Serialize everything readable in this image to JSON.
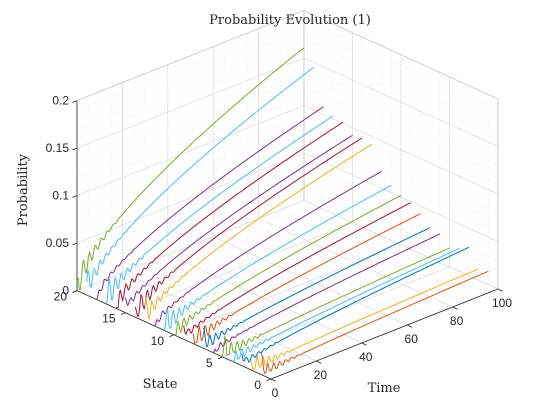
{
  "chart_data": {
    "type": "line",
    "title": "Probability Evolution (1)",
    "xlabel": "Time",
    "ylabel": "State",
    "zlabel": "Probability",
    "xlim": [
      0,
      100
    ],
    "ylim": [
      0,
      20
    ],
    "zlim": [
      0,
      0.2
    ],
    "x_ticks": [
      0,
      20,
      40,
      60,
      80,
      100
    ],
    "y_ticks": [
      0,
      5,
      10,
      15,
      20
    ],
    "z_ticks": [
      0,
      0.05,
      0.1,
      0.15,
      0.2
    ],
    "z_tick_labels": [
      "0",
      "0.05",
      "0.1",
      "0.15",
      "0.2"
    ],
    "grid": true,
    "view": "3d",
    "series": [
      {
        "state": 20,
        "start": 0,
        "end": 0.161,
        "color": "#77AC30"
      },
      {
        "state": 19,
        "start": 0,
        "end": 0.145,
        "color": "#4DBEEE"
      },
      {
        "state": 18,
        "start": 0,
        "end": 0.108,
        "color": "#7E2F8E"
      },
      {
        "state": 17,
        "start": 0,
        "end": 0.103,
        "color": "#4DBEEE"
      },
      {
        "state": 16,
        "start": 0,
        "end": 0.101,
        "color": "#A2142F"
      },
      {
        "state": 15,
        "start": 0,
        "end": 0.092,
        "color": "#7E2F8E"
      },
      {
        "state": 14,
        "start": 0,
        "end": 0.094,
        "color": "#A2142F"
      },
      {
        "state": 13,
        "start": 0,
        "end": 0.092,
        "color": "#EDB120"
      },
      {
        "state": 12,
        "start": 0,
        "end": 0.068,
        "color": "#7E2F8E"
      },
      {
        "state": 11,
        "start": 0,
        "end": 0.058,
        "color": "#4DBEEE"
      },
      {
        "state": 10,
        "start": 0,
        "end": 0.052,
        "color": "#77AC30"
      },
      {
        "state": 9,
        "start": 0,
        "end": 0.049,
        "color": "#A2142F"
      },
      {
        "state": 8,
        "start": 0,
        "end": 0.042,
        "color": "#D95319"
      },
      {
        "state": 7,
        "start": 0,
        "end": 0.032,
        "color": "#0072BD"
      },
      {
        "state": 6,
        "start": 0,
        "end": 0.03,
        "color": "#7E2F8E"
      },
      {
        "state": 5,
        "start": 0,
        "end": 0.02,
        "color": "#77AC30"
      },
      {
        "state": 4,
        "start": 0,
        "end": 0.024,
        "color": "#4DBEEE"
      },
      {
        "state": 3,
        "start": 0,
        "end": 0.03,
        "color": "#0072BD"
      },
      {
        "state": 2,
        "start": 0,
        "end": 0.012,
        "color": "#EDB120"
      },
      {
        "state": 1,
        "start": 0,
        "end": 0.014,
        "color": "#D95319"
      }
    ]
  }
}
